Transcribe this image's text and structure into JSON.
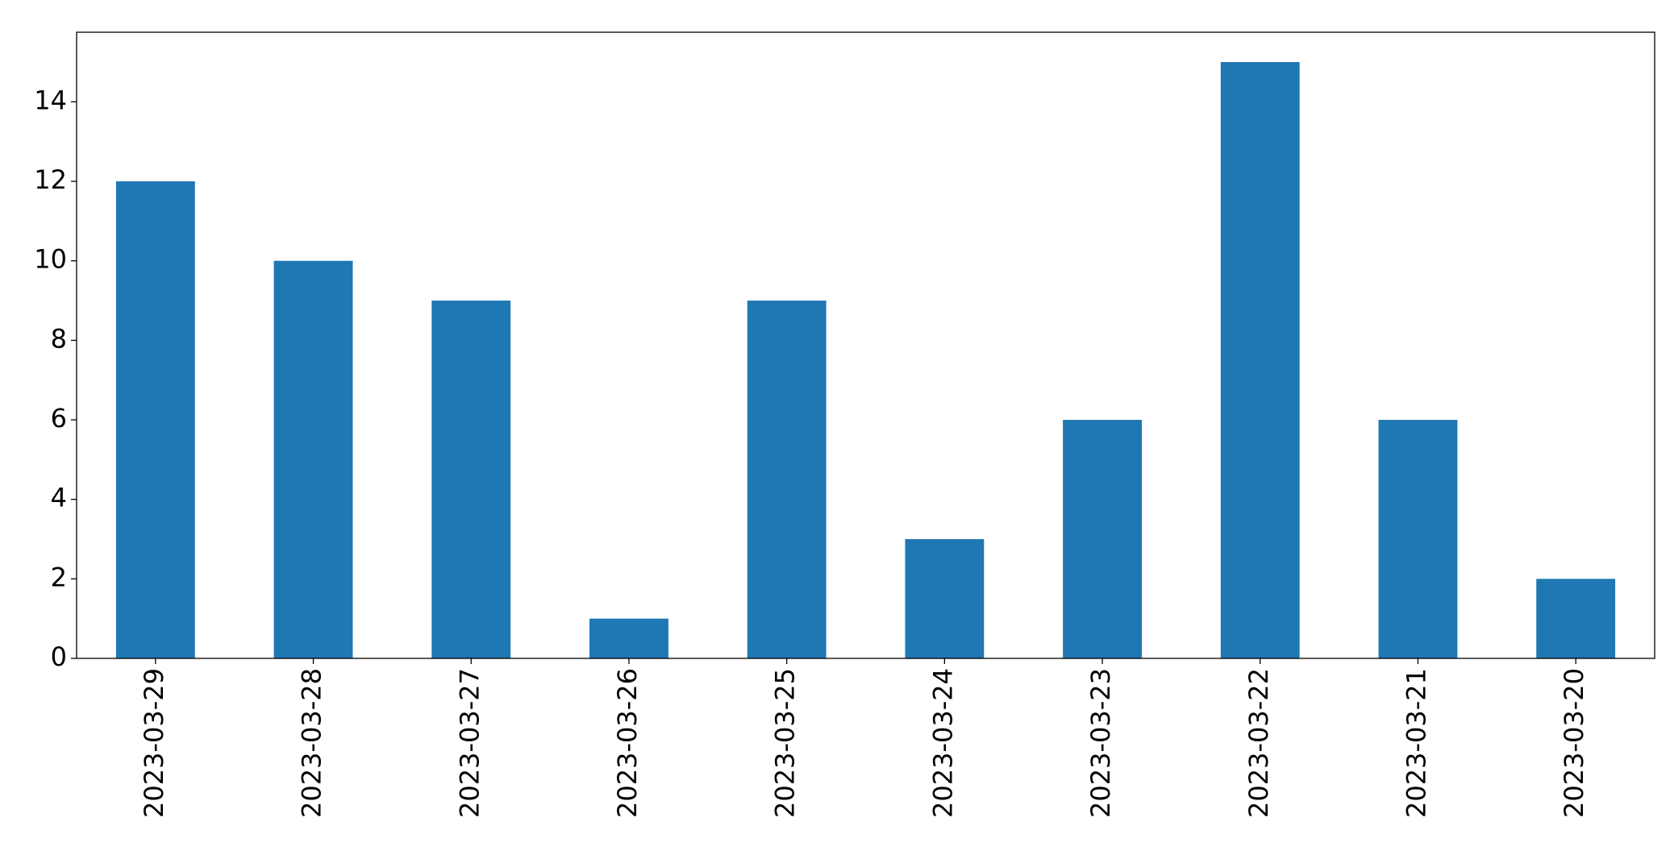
{
  "chart_data": {
    "type": "bar",
    "categories": [
      "2023-03-29",
      "2023-03-28",
      "2023-03-27",
      "2023-03-26",
      "2023-03-25",
      "2023-03-24",
      "2023-03-23",
      "2023-03-22",
      "2023-03-21",
      "2023-03-20"
    ],
    "values": [
      12,
      10,
      9,
      1,
      9,
      3,
      6,
      15,
      6,
      2
    ],
    "color": "#1f77b4",
    "ylim": [
      0,
      15.75
    ],
    "yticks": [
      0,
      2,
      4,
      6,
      8,
      10,
      12,
      14
    ],
    "grid": false
  }
}
